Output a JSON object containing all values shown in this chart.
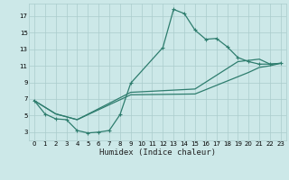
{
  "xlabel": "Humidex (Indice chaleur)",
  "bg_color": "#cce8e8",
  "grid_color": "#aacccc",
  "line_color": "#2e7d6e",
  "xlim": [
    -0.5,
    23.5
  ],
  "ylim": [
    2.0,
    18.5
  ],
  "xticks": [
    0,
    1,
    2,
    3,
    4,
    5,
    6,
    7,
    8,
    9,
    10,
    11,
    12,
    13,
    14,
    15,
    16,
    17,
    18,
    19,
    20,
    21,
    22,
    23
  ],
  "yticks": [
    3,
    5,
    7,
    9,
    11,
    13,
    15,
    17
  ],
  "curve1_x": [
    0,
    1,
    2,
    3,
    4,
    5,
    6,
    7,
    8,
    9,
    12,
    13,
    14,
    15,
    16,
    17,
    18,
    19,
    20,
    21,
    22,
    23
  ],
  "curve1_y": [
    6.8,
    5.2,
    4.6,
    4.5,
    3.2,
    2.9,
    3.0,
    3.2,
    5.1,
    8.9,
    13.2,
    17.8,
    17.3,
    15.3,
    14.2,
    14.3,
    13.3,
    12.0,
    11.5,
    11.2,
    11.2,
    11.3
  ],
  "curve2_x": [
    0,
    2,
    4,
    9,
    15,
    19,
    21,
    22,
    23
  ],
  "curve2_y": [
    6.8,
    5.2,
    4.5,
    7.8,
    8.2,
    11.5,
    11.8,
    11.2,
    11.3
  ],
  "curve3_x": [
    0,
    2,
    4,
    9,
    15,
    20,
    21,
    22,
    23
  ],
  "curve3_y": [
    6.8,
    5.2,
    4.5,
    7.5,
    7.6,
    10.2,
    10.8,
    11.0,
    11.3
  ],
  "figsize": [
    3.2,
    2.0
  ],
  "dpi": 100,
  "lw": 0.9,
  "marker_size": 3.0,
  "xlabel_fontsize": 6.5,
  "tick_fontsize": 5.0
}
